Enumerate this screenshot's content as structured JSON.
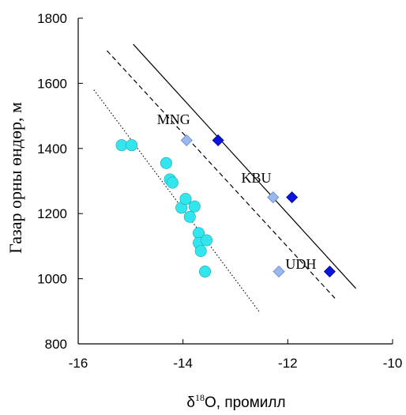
{
  "chart_data": {
    "type": "scatter",
    "title": "",
    "xlabel_main": "δ",
    "xlabel_sup": "18",
    "xlabel_rest": "O, промилл",
    "ylabel": "Газар орны өндөр, м",
    "xlim": [
      -16,
      -10
    ],
    "ylim": [
      800,
      1800
    ],
    "x_ticks": [
      -16,
      -14,
      -12,
      -10
    ],
    "y_ticks": [
      800,
      1000,
      1200,
      1400,
      1600,
      1800
    ],
    "grid": false,
    "series": [
      {
        "marker": "circle",
        "color": "#33e6ee",
        "points": [
          [
            -15.17,
            1410
          ],
          [
            -14.98,
            1410
          ],
          [
            -14.32,
            1355
          ],
          [
            -14.25,
            1305
          ],
          [
            -14.2,
            1295
          ],
          [
            -14.03,
            1218
          ],
          [
            -13.95,
            1245
          ],
          [
            -13.87,
            1190
          ],
          [
            -13.78,
            1222
          ],
          [
            -13.7,
            1140
          ],
          [
            -13.7,
            1110
          ],
          [
            -13.66,
            1085
          ],
          [
            -13.55,
            1118
          ],
          [
            -13.58,
            1022
          ]
        ]
      },
      {
        "marker": "diamond",
        "color": "#9ab8ee",
        "points": [
          [
            -13.93,
            1425
          ],
          [
            -12.28,
            1250
          ],
          [
            -12.17,
            1022
          ]
        ]
      },
      {
        "marker": "diamond",
        "color": "#0a14dd",
        "points": [
          [
            -13.33,
            1425
          ],
          [
            -11.92,
            1250
          ],
          [
            -11.2,
            1022
          ]
        ]
      }
    ],
    "lines": [
      {
        "style": "solid",
        "from": [
          -14.95,
          1720
        ],
        "to": [
          -10.7,
          970
        ]
      },
      {
        "style": "dashed",
        "from": [
          -15.45,
          1700
        ],
        "to": [
          -11.1,
          940
        ]
      },
      {
        "style": "dotted",
        "from": [
          -15.7,
          1580
        ],
        "to": [
          -12.55,
          900
        ]
      }
    ],
    "annotations": [
      {
        "text": "MNG",
        "x": -14.18,
        "y": 1475
      },
      {
        "text": "KBU",
        "x": -12.6,
        "y": 1295
      },
      {
        "text": "UDH",
        "x": -11.75,
        "y": 1030
      }
    ]
  }
}
